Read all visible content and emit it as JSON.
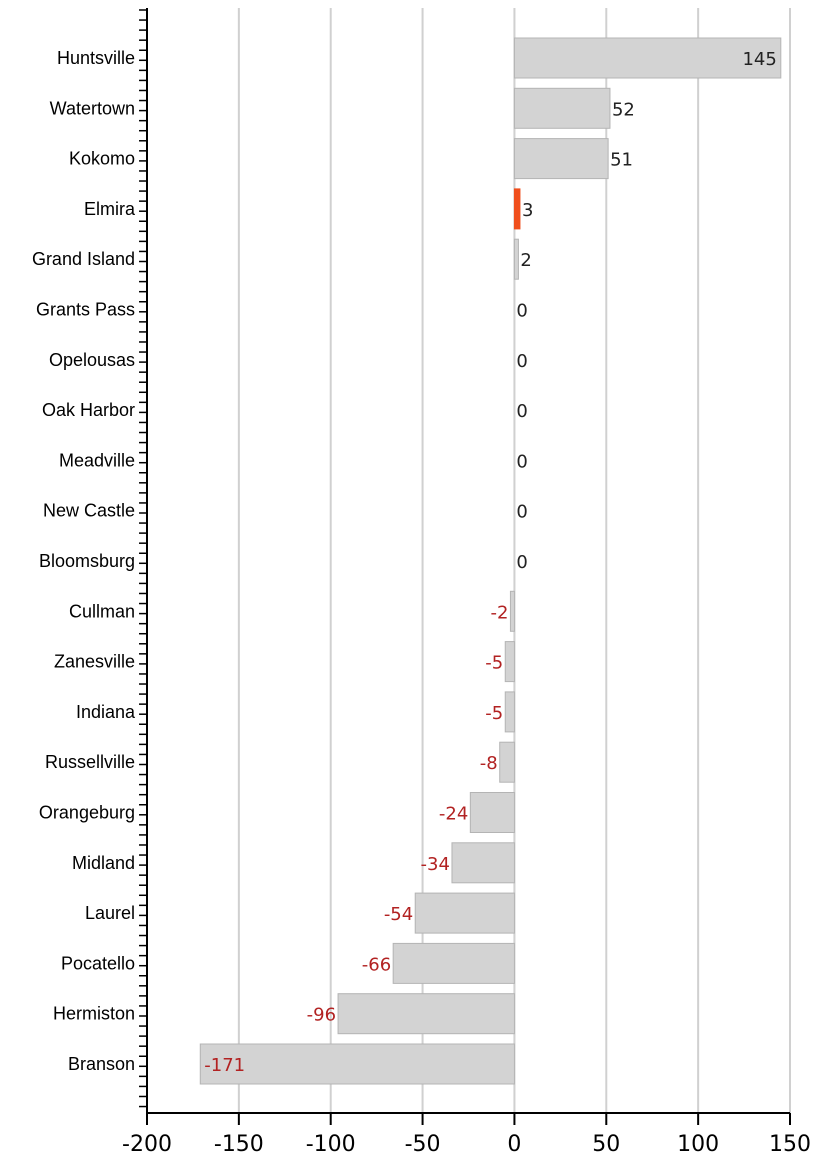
{
  "chart_data": {
    "type": "bar",
    "orientation": "horizontal",
    "categories": [
      "Huntsville",
      "Watertown",
      "Kokomo",
      "Elmira",
      "Grand Island",
      "Grants Pass",
      "Opelousas",
      "Oak Harbor",
      "Meadville",
      "New Castle",
      "Bloomsburg",
      "Cullman",
      "Zanesville",
      "Indiana",
      "Russellville",
      "Orangeburg",
      "Midland",
      "Laurel",
      "Pocatello",
      "Hermiston",
      "Branson"
    ],
    "values": [
      145,
      52,
      51,
      3,
      2,
      0,
      0,
      0,
      0,
      0,
      0,
      -2,
      -5,
      -5,
      -8,
      -24,
      -34,
      -54,
      -66,
      -96,
      -171
    ],
    "data_labels": [
      "145",
      "52",
      "51",
      "3",
      "2",
      "0",
      "0",
      "0",
      "0",
      "0",
      "0",
      "-2",
      "-5",
      "-5",
      "-8",
      "-24",
      "-34",
      "-54",
      "-66",
      "-96",
      "-171"
    ],
    "highlight": "Elmira",
    "xlim": [
      -200,
      150
    ],
    "xticks": [
      -200,
      -150,
      -100,
      -50,
      0,
      50,
      100,
      150
    ],
    "xtick_labels": [
      "-200",
      "-150",
      "-100",
      "-50",
      "0",
      "50",
      "100",
      "150"
    ],
    "grid": "vertical",
    "title": "",
    "xlabel": "",
    "ylabel": "",
    "colors": {
      "bar": "#d3d3d3",
      "bar_stroke": "#b4b4b4",
      "highlight": "#f04e1c",
      "positive_label": "#222222",
      "negative_label": "#b22222",
      "grid": "#d0d0d0",
      "axis": "#000000"
    }
  }
}
